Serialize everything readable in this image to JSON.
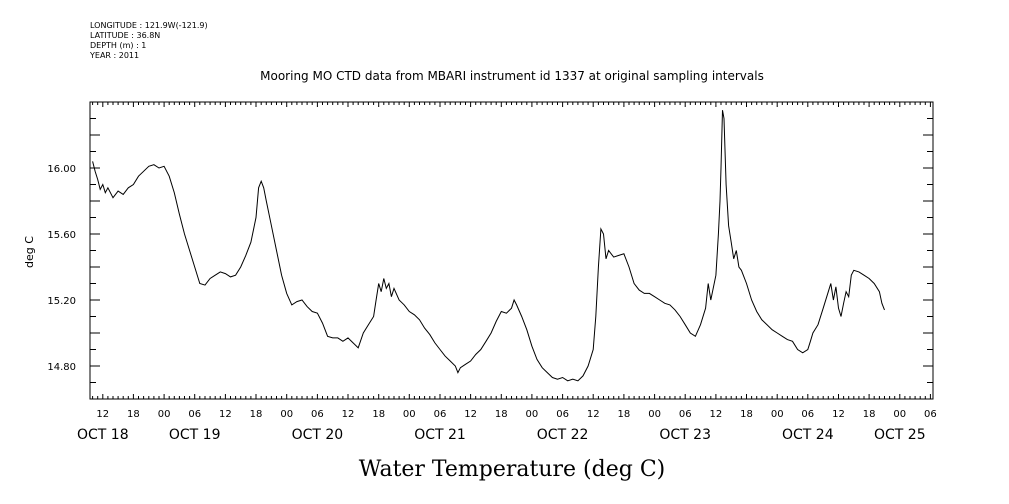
{
  "meta": {
    "longitude": "LONGITUDE : 121.9W(-121.9)",
    "latitude": "LATITUDE : 36.8N",
    "depth": "DEPTH (m) : 1",
    "year": "YEAR : 2011"
  },
  "chart_data": {
    "type": "line",
    "title": "Mooring MO CTD data from MBARI instrument id 1337 at original sampling intervals",
    "xlabel": "Water Temperature (deg C)",
    "ylabel": "deg C",
    "x_unit": "hours since OCT 18 00",
    "xlim": [
      9.5,
      174.5
    ],
    "ylim": [
      14.6,
      16.4
    ],
    "y_ticks": [
      14.8,
      15.2,
      15.6,
      16.0
    ],
    "y_tick_labels": [
      "14.80",
      "15.20",
      "15.60",
      "16.00"
    ],
    "hour_tick_labels": [
      {
        "t": 12,
        "label": "12"
      },
      {
        "t": 18,
        "label": "18"
      },
      {
        "t": 24,
        "label": "00"
      },
      {
        "t": 30,
        "label": "06"
      },
      {
        "t": 36,
        "label": "12"
      },
      {
        "t": 42,
        "label": "18"
      },
      {
        "t": 48,
        "label": "00"
      },
      {
        "t": 54,
        "label": "06"
      },
      {
        "t": 60,
        "label": "12"
      },
      {
        "t": 66,
        "label": "18"
      },
      {
        "t": 72,
        "label": "00"
      },
      {
        "t": 78,
        "label": "06"
      },
      {
        "t": 84,
        "label": "12"
      },
      {
        "t": 90,
        "label": "18"
      },
      {
        "t": 96,
        "label": "00"
      },
      {
        "t": 102,
        "label": "06"
      },
      {
        "t": 108,
        "label": "12"
      },
      {
        "t": 114,
        "label": "18"
      },
      {
        "t": 120,
        "label": "00"
      },
      {
        "t": 126,
        "label": "06"
      },
      {
        "t": 132,
        "label": "12"
      },
      {
        "t": 138,
        "label": "18"
      },
      {
        "t": 144,
        "label": "00"
      },
      {
        "t": 150,
        "label": "06"
      },
      {
        "t": 156,
        "label": "12"
      },
      {
        "t": 162,
        "label": "18"
      },
      {
        "t": 168,
        "label": "00"
      },
      {
        "t": 174,
        "label": "06"
      }
    ],
    "day_labels": [
      {
        "t": 12,
        "label": "OCT 18"
      },
      {
        "t": 30,
        "label": "OCT 19"
      },
      {
        "t": 54,
        "label": "OCT 20"
      },
      {
        "t": 78,
        "label": "OCT 21"
      },
      {
        "t": 102,
        "label": "OCT 22"
      },
      {
        "t": 126,
        "label": "OCT 23"
      },
      {
        "t": 150,
        "label": "OCT 24"
      },
      {
        "t": 168,
        "label": "OCT 25"
      }
    ],
    "series": [
      {
        "color": "#000000",
        "points": [
          [
            10,
            16.04
          ],
          [
            10.5,
            15.98
          ],
          [
            11,
            15.93
          ],
          [
            11.5,
            15.87
          ],
          [
            12,
            15.9
          ],
          [
            12.5,
            15.85
          ],
          [
            13,
            15.88
          ],
          [
            14,
            15.82
          ],
          [
            15,
            15.86
          ],
          [
            16,
            15.84
          ],
          [
            17,
            15.88
          ],
          [
            18,
            15.9
          ],
          [
            19,
            15.95
          ],
          [
            20,
            15.98
          ],
          [
            21,
            16.01
          ],
          [
            22,
            16.02
          ],
          [
            23,
            16.0
          ],
          [
            24,
            16.01
          ],
          [
            25,
            15.95
          ],
          [
            26,
            15.85
          ],
          [
            27,
            15.72
          ],
          [
            28,
            15.6
          ],
          [
            29,
            15.5
          ],
          [
            30,
            15.4
          ],
          [
            31,
            15.3
          ],
          [
            32,
            15.29
          ],
          [
            33,
            15.33
          ],
          [
            34,
            15.35
          ],
          [
            35,
            15.37
          ],
          [
            36,
            15.36
          ],
          [
            37,
            15.34
          ],
          [
            38,
            15.35
          ],
          [
            39,
            15.4
          ],
          [
            40,
            15.47
          ],
          [
            41,
            15.55
          ],
          [
            42,
            15.7
          ],
          [
            42.5,
            15.88
          ],
          [
            43,
            15.92
          ],
          [
            43.5,
            15.88
          ],
          [
            44,
            15.8
          ],
          [
            45,
            15.65
          ],
          [
            46,
            15.5
          ],
          [
            47,
            15.35
          ],
          [
            48,
            15.24
          ],
          [
            49,
            15.17
          ],
          [
            50,
            15.19
          ],
          [
            51,
            15.2
          ],
          [
            52,
            15.16
          ],
          [
            53,
            15.13
          ],
          [
            54,
            15.12
          ],
          [
            55,
            15.06
          ],
          [
            56,
            14.98
          ],
          [
            57,
            14.97
          ],
          [
            58,
            14.97
          ],
          [
            59,
            14.95
          ],
          [
            60,
            14.97
          ],
          [
            61,
            14.94
          ],
          [
            62,
            14.91
          ],
          [
            63,
            15.0
          ],
          [
            64,
            15.05
          ],
          [
            65,
            15.1
          ],
          [
            65.5,
            15.2
          ],
          [
            66,
            15.3
          ],
          [
            66.5,
            15.25
          ],
          [
            67,
            15.33
          ],
          [
            67.5,
            15.27
          ],
          [
            68,
            15.3
          ],
          [
            68.5,
            15.22
          ],
          [
            69,
            15.27
          ],
          [
            70,
            15.2
          ],
          [
            71,
            15.17
          ],
          [
            72,
            15.13
          ],
          [
            73,
            15.11
          ],
          [
            74,
            15.08
          ],
          [
            75,
            15.03
          ],
          [
            76,
            14.99
          ],
          [
            77,
            14.94
          ],
          [
            78,
            14.9
          ],
          [
            79,
            14.86
          ],
          [
            80,
            14.83
          ],
          [
            81,
            14.8
          ],
          [
            81.5,
            14.76
          ],
          [
            82,
            14.79
          ],
          [
            83,
            14.81
          ],
          [
            84,
            14.83
          ],
          [
            85,
            14.87
          ],
          [
            86,
            14.9
          ],
          [
            87,
            14.95
          ],
          [
            88,
            15.0
          ],
          [
            89,
            15.07
          ],
          [
            90,
            15.13
          ],
          [
            91,
            15.12
          ],
          [
            92,
            15.15
          ],
          [
            92.5,
            15.2
          ],
          [
            93,
            15.17
          ],
          [
            94,
            15.1
          ],
          [
            95,
            15.02
          ],
          [
            96,
            14.92
          ],
          [
            97,
            14.84
          ],
          [
            98,
            14.79
          ],
          [
            99,
            14.76
          ],
          [
            100,
            14.73
          ],
          [
            101,
            14.72
          ],
          [
            102,
            14.73
          ],
          [
            103,
            14.71
          ],
          [
            104,
            14.72
          ],
          [
            105,
            14.71
          ],
          [
            106,
            14.74
          ],
          [
            107,
            14.8
          ],
          [
            108,
            14.9
          ],
          [
            108.5,
            15.1
          ],
          [
            109,
            15.4
          ],
          [
            109.5,
            15.63
          ],
          [
            110,
            15.6
          ],
          [
            110.5,
            15.45
          ],
          [
            111,
            15.5
          ],
          [
            112,
            15.46
          ],
          [
            113,
            15.47
          ],
          [
            114,
            15.48
          ],
          [
            115,
            15.4
          ],
          [
            116,
            15.3
          ],
          [
            117,
            15.26
          ],
          [
            118,
            15.24
          ],
          [
            119,
            15.24
          ],
          [
            120,
            15.22
          ],
          [
            121,
            15.2
          ],
          [
            122,
            15.18
          ],
          [
            123,
            15.17
          ],
          [
            124,
            15.14
          ],
          [
            125,
            15.1
          ],
          [
            126,
            15.05
          ],
          [
            127,
            15.0
          ],
          [
            128,
            14.98
          ],
          [
            129,
            15.05
          ],
          [
            130,
            15.15
          ],
          [
            130.5,
            15.3
          ],
          [
            131,
            15.2
          ],
          [
            132,
            15.35
          ],
          [
            132.5,
            15.6
          ],
          [
            132.8,
            15.8
          ],
          [
            133,
            16.0
          ],
          [
            133.3,
            16.35
          ],
          [
            133.6,
            16.3
          ],
          [
            134,
            15.9
          ],
          [
            134.5,
            15.65
          ],
          [
            135,
            15.55
          ],
          [
            135.5,
            15.45
          ],
          [
            136,
            15.5
          ],
          [
            136.5,
            15.4
          ],
          [
            137,
            15.38
          ],
          [
            138,
            15.3
          ],
          [
            139,
            15.2
          ],
          [
            140,
            15.13
          ],
          [
            141,
            15.08
          ],
          [
            142,
            15.05
          ],
          [
            143,
            15.02
          ],
          [
            144,
            15.0
          ],
          [
            145,
            14.98
          ],
          [
            146,
            14.96
          ],
          [
            147,
            14.95
          ],
          [
            148,
            14.9
          ],
          [
            149,
            14.88
          ],
          [
            150,
            14.9
          ],
          [
            150.5,
            14.95
          ],
          [
            151,
            15.0
          ],
          [
            152,
            15.05
          ],
          [
            153,
            15.15
          ],
          [
            154,
            15.25
          ],
          [
            154.5,
            15.3
          ],
          [
            155,
            15.2
          ],
          [
            155.5,
            15.28
          ],
          [
            156,
            15.15
          ],
          [
            156.5,
            15.1
          ],
          [
            157,
            15.18
          ],
          [
            157.5,
            15.25
          ],
          [
            158,
            15.22
          ],
          [
            158.5,
            15.35
          ],
          [
            159,
            15.38
          ],
          [
            160,
            15.37
          ],
          [
            161,
            15.35
          ],
          [
            162,
            15.33
          ],
          [
            163,
            15.3
          ],
          [
            164,
            15.25
          ],
          [
            164.5,
            15.18
          ],
          [
            165,
            15.14
          ]
        ]
      }
    ]
  }
}
